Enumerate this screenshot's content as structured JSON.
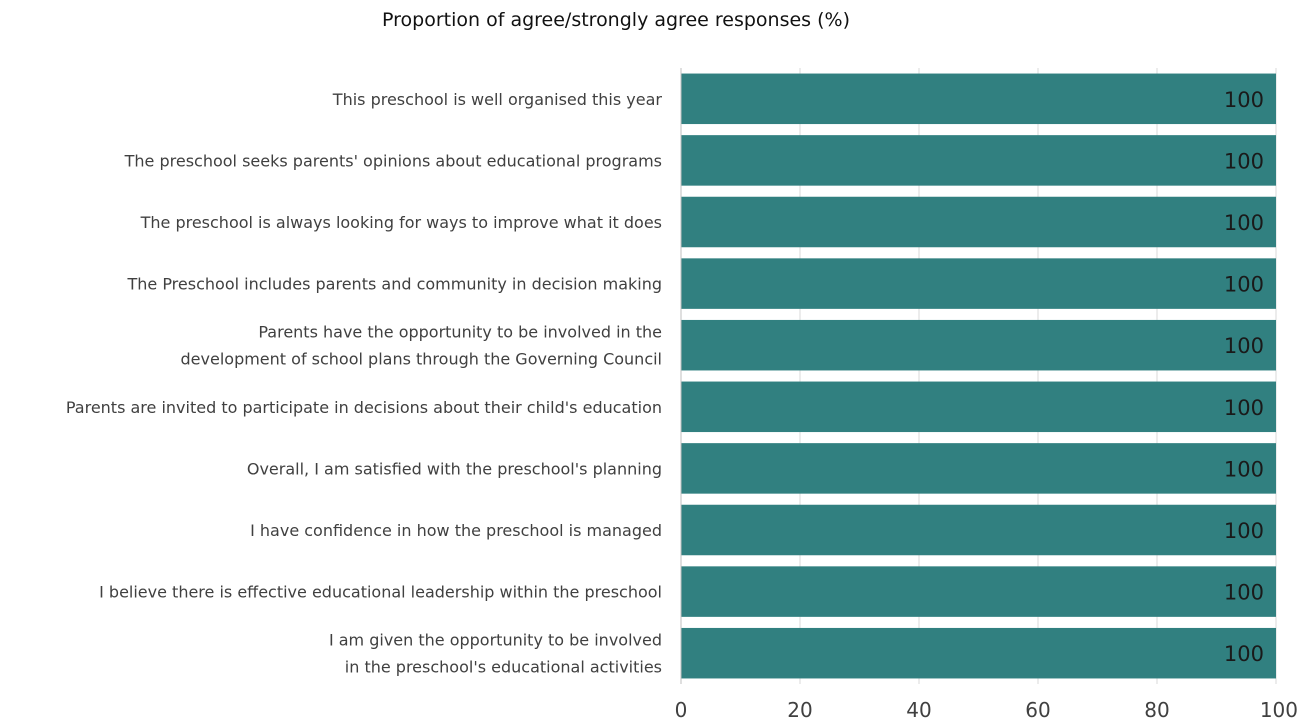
{
  "chart_data": {
    "type": "bar",
    "orientation": "horizontal",
    "title": "Proportion of agree/strongly agree responses (%)",
    "xlabel": "",
    "ylabel": "",
    "xlim": [
      0,
      100
    ],
    "ticks": [
      "0",
      "20",
      "40",
      "60",
      "80",
      "100"
    ],
    "grid": true,
    "legend": "none",
    "bar_color": "#318080",
    "categories": [
      [
        "This preschool is well organised this year"
      ],
      [
        "The preschool seeks parents' opinions about educational programs"
      ],
      [
        "The preschool is always looking for ways to improve what it does"
      ],
      [
        "The Preschool includes parents and community in decision making"
      ],
      [
        "Parents have the opportunity to be involved in the",
        "development of school plans through the Governing Council"
      ],
      [
        "Parents are invited to participate in decisions about their child's education"
      ],
      [
        "Overall, I am satisfied with the preschool's planning"
      ],
      [
        "I have confidence in how the preschool is managed"
      ],
      [
        "I believe there is effective educational leadership within the preschool"
      ],
      [
        "I am given the opportunity to be involved",
        "in the preschool's educational activities"
      ]
    ],
    "values": [
      100,
      100,
      100,
      100,
      100,
      100,
      100,
      100,
      100,
      100
    ]
  }
}
